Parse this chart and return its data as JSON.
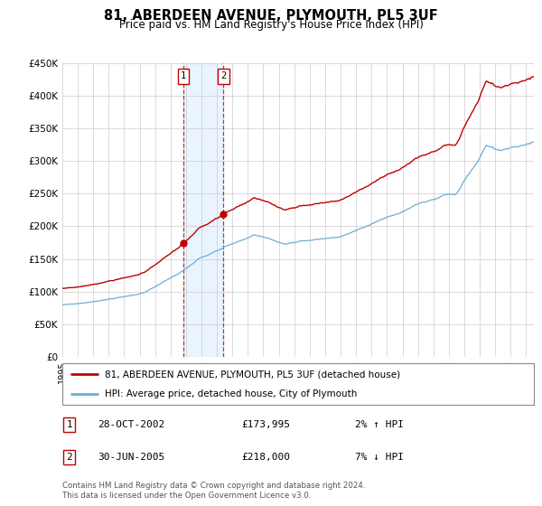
{
  "title": "81, ABERDEEN AVENUE, PLYMOUTH, PL5 3UF",
  "subtitle": "Price paid vs. HM Land Registry's House Price Index (HPI)",
  "ylim": [
    0,
    450000
  ],
  "yticks": [
    0,
    50000,
    100000,
    150000,
    200000,
    250000,
    300000,
    350000,
    400000,
    450000
  ],
  "ytick_labels": [
    "£0",
    "£50K",
    "£100K",
    "£150K",
    "£200K",
    "£250K",
    "£300K",
    "£350K",
    "£400K",
    "£450K"
  ],
  "hpi_color": "#6baed6",
  "price_color": "#c00000",
  "sale1_year": 2002,
  "sale1_month": 10,
  "sale1_price": 173995,
  "sale2_year": 2005,
  "sale2_month": 6,
  "sale2_price": 218000,
  "legend_line1": "81, ABERDEEN AVENUE, PLYMOUTH, PL5 3UF (detached house)",
  "legend_line2": "HPI: Average price, detached house, City of Plymouth",
  "sale1_date_str": "28-OCT-2002",
  "sale2_date_str": "30-JUN-2005",
  "sale1_hpi_str": "2% ↑ HPI",
  "sale2_hpi_str": "7% ↓ HPI",
  "footer": "Contains HM Land Registry data © Crown copyright and database right 2024.\nThis data is licensed under the Open Government Licence v3.0.",
  "background_color": "#ffffff",
  "grid_color": "#cccccc",
  "shade_color": "#ddeeff"
}
